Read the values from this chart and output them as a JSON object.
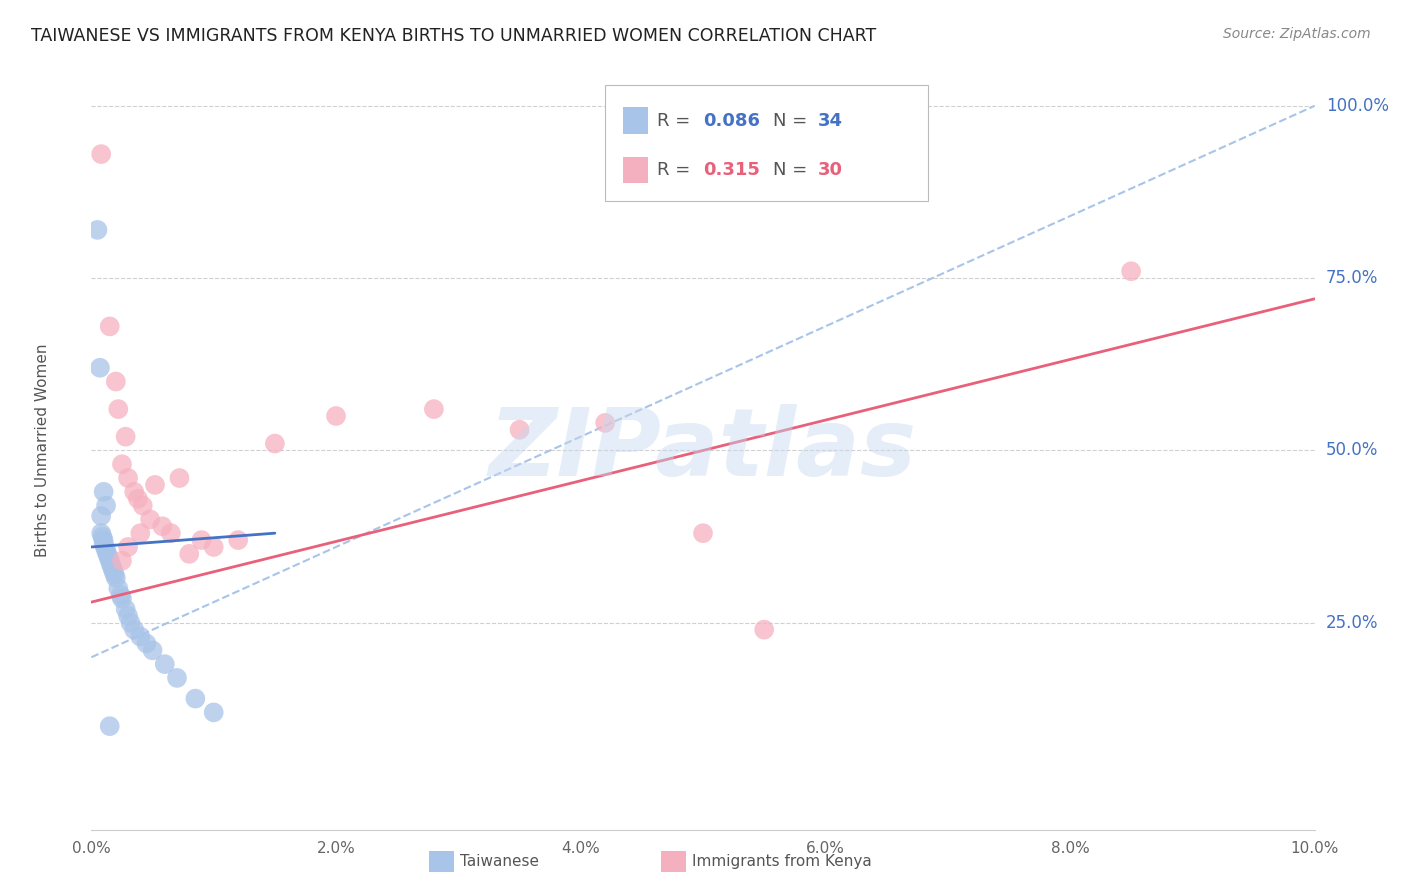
{
  "title": "TAIWANESE VS IMMIGRANTS FROM KENYA BIRTHS TO UNMARRIED WOMEN CORRELATION CHART",
  "source": "Source: ZipAtlas.com",
  "ylabel": "Births to Unmarried Women",
  "xlim": [
    0.0,
    10.0
  ],
  "ylim": [
    -5.0,
    105.0
  ],
  "xtick_vals": [
    0.0,
    2.0,
    4.0,
    6.0,
    8.0,
    10.0
  ],
  "xtick_labels": [
    "0.0%",
    "2.0%",
    "4.0%",
    "6.0%",
    "8.0%",
    "10.0%"
  ],
  "ytick_values_right": [
    25.0,
    50.0,
    75.0,
    100.0
  ],
  "ytick_labels_right": [
    "25.0%",
    "50.0%",
    "75.0%",
    "100.0%"
  ],
  "watermark": "ZIPatlas",
  "blue_color": "#a8c4e8",
  "pink_color": "#f5b0c0",
  "blue_line_color": "#4472c4",
  "pink_line_color": "#e8607a",
  "blue_dashed_color": "#a8c4e8",
  "background_color": "#ffffff",
  "grid_color": "#d0d0d0",
  "axis_color": "#4472c4",
  "title_color": "#222222",
  "taiwanese_x": [
    0.05,
    0.07,
    0.08,
    0.09,
    0.1,
    0.1,
    0.11,
    0.12,
    0.13,
    0.14,
    0.15,
    0.16,
    0.17,
    0.18,
    0.19,
    0.2,
    0.22,
    0.24,
    0.25,
    0.28,
    0.3,
    0.32,
    0.35,
    0.4,
    0.45,
    0.5,
    0.6,
    0.7,
    0.85,
    1.0,
    0.1,
    0.12,
    0.08,
    0.15
  ],
  "taiwanese_y": [
    82.0,
    62.0,
    38.0,
    37.5,
    37.0,
    36.5,
    36.0,
    35.5,
    35.0,
    34.5,
    34.0,
    33.5,
    33.0,
    32.5,
    32.0,
    31.5,
    30.0,
    29.0,
    28.5,
    27.0,
    26.0,
    25.0,
    24.0,
    23.0,
    22.0,
    21.0,
    19.0,
    17.0,
    14.0,
    12.0,
    44.0,
    42.0,
    40.5,
    10.0
  ],
  "kenya_x": [
    0.08,
    0.15,
    0.2,
    0.22,
    0.25,
    0.28,
    0.3,
    0.35,
    0.38,
    0.42,
    0.48,
    0.52,
    0.58,
    0.65,
    0.72,
    0.8,
    0.9,
    1.0,
    1.2,
    1.5,
    2.0,
    2.8,
    3.5,
    4.2,
    5.0,
    5.5,
    0.25,
    0.3,
    0.4,
    8.5
  ],
  "kenya_y": [
    93.0,
    68.0,
    60.0,
    56.0,
    48.0,
    52.0,
    46.0,
    44.0,
    43.0,
    42.0,
    40.0,
    45.0,
    39.0,
    38.0,
    46.0,
    35.0,
    37.0,
    36.0,
    37.0,
    51.0,
    55.0,
    56.0,
    53.0,
    54.0,
    38.0,
    24.0,
    34.0,
    36.0,
    38.0,
    76.0
  ],
  "blue_trendline_x": [
    0.0,
    1.5
  ],
  "blue_trendline_y": [
    36.0,
    38.0
  ],
  "pink_trendline_x": [
    0.0,
    10.0
  ],
  "pink_trendline_y": [
    28.0,
    72.0
  ],
  "dashed_trendline_x": [
    0.0,
    10.0
  ],
  "dashed_trendline_y": [
    20.0,
    100.0
  ]
}
